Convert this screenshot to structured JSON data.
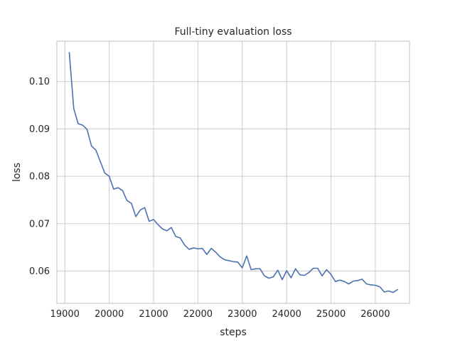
{
  "chart_data": {
    "type": "line",
    "title": "Full-tiny evaluation loss",
    "xlabel": "steps",
    "ylabel": "loss",
    "xlim": [
      18820,
      26770
    ],
    "ylim": [
      0.0532,
      0.1085
    ],
    "xticks": [
      19000,
      20000,
      21000,
      22000,
      23000,
      24000,
      25000,
      26000
    ],
    "yticks": [
      0.06,
      0.07,
      0.08,
      0.09,
      0.1
    ],
    "ytick_labels": [
      "0.06",
      "0.07",
      "0.08",
      "0.09",
      "0.10"
    ],
    "grid": true,
    "series": [
      {
        "color": "#4c72b0",
        "x": [
          19100,
          19200,
          19300,
          19400,
          19500,
          19600,
          19700,
          19800,
          19900,
          20000,
          20100,
          20200,
          20300,
          20400,
          20500,
          20600,
          20700,
          20800,
          20900,
          21000,
          21100,
          21200,
          21300,
          21400,
          21500,
          21600,
          21700,
          21800,
          21900,
          22000,
          22100,
          22200,
          22300,
          22400,
          22500,
          22600,
          22700,
          22800,
          22900,
          23000,
          23100,
          23200,
          23300,
          23400,
          23500,
          23600,
          23700,
          23800,
          23900,
          24000,
          24100,
          24200,
          24300,
          24400,
          24500,
          24600,
          24700,
          24800,
          24900,
          25000,
          25100,
          25200,
          25300,
          25400,
          25500,
          25600,
          25700,
          25800,
          25900,
          26000,
          26100,
          26200,
          26300,
          26400,
          26500
        ],
        "y": [
          0.1061,
          0.0943,
          0.0911,
          0.0908,
          0.0899,
          0.0864,
          0.0855,
          0.0831,
          0.0807,
          0.08,
          0.0773,
          0.0776,
          0.077,
          0.0749,
          0.0743,
          0.0715,
          0.0729,
          0.0734,
          0.0705,
          0.0709,
          0.0698,
          0.0689,
          0.0685,
          0.0692,
          0.0673,
          0.067,
          0.0655,
          0.0646,
          0.0649,
          0.0647,
          0.0648,
          0.0635,
          0.0648,
          0.064,
          0.063,
          0.0624,
          0.0622,
          0.062,
          0.0619,
          0.0607,
          0.0632,
          0.0603,
          0.0605,
          0.0605,
          0.059,
          0.0585,
          0.0588,
          0.0602,
          0.0582,
          0.0601,
          0.0586,
          0.0605,
          0.0592,
          0.0591,
          0.0597,
          0.0606,
          0.0606,
          0.059,
          0.0603,
          0.0593,
          0.0578,
          0.0581,
          0.0578,
          0.0573,
          0.0579,
          0.058,
          0.0583,
          0.0573,
          0.0571,
          0.057,
          0.0567,
          0.0556,
          0.0558,
          0.0555,
          0.0561
        ]
      }
    ]
  }
}
